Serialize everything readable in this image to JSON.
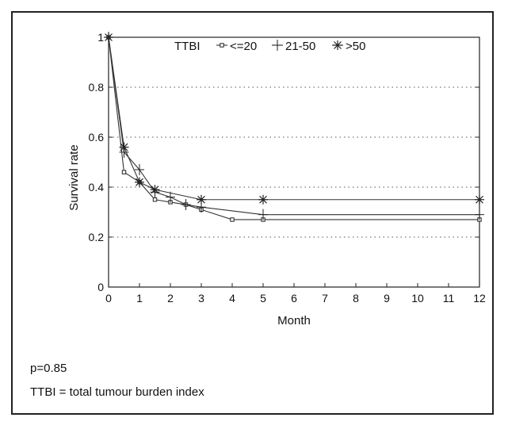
{
  "chart_data": {
    "type": "line",
    "xlabel": "Month",
    "ylabel": "Survival rate",
    "xlim": [
      0,
      12
    ],
    "ylim": [
      0,
      1
    ],
    "x_ticks": [
      "0",
      "1",
      "2",
      "3",
      "4",
      "5",
      "6",
      "7",
      "8",
      "9",
      "10",
      "11",
      "12"
    ],
    "y_ticks": [
      "0",
      "0.2",
      "0.4",
      "0.6",
      "0.8",
      "1"
    ],
    "grid": "horizontal dotted",
    "legend": {
      "title": "TTBI",
      "placement": "top"
    },
    "series": [
      {
        "name": "<=20",
        "marker": "square",
        "points": [
          [
            0,
            1.0
          ],
          [
            0.5,
            0.46
          ],
          [
            1,
            0.42
          ],
          [
            1.5,
            0.35
          ],
          [
            2,
            0.34
          ],
          [
            2.5,
            0.33
          ],
          [
            3,
            0.31
          ],
          [
            4,
            0.27
          ],
          [
            5,
            0.27
          ],
          [
            12,
            0.27
          ]
        ]
      },
      {
        "name": "21-50",
        "marker": "plus",
        "points": [
          [
            0,
            1.0
          ],
          [
            0.5,
            0.54
          ],
          [
            1,
            0.47
          ],
          [
            1.5,
            0.38
          ],
          [
            2,
            0.36
          ],
          [
            2.5,
            0.33
          ],
          [
            3,
            0.32
          ],
          [
            5,
            0.29
          ],
          [
            12,
            0.29
          ]
        ]
      },
      {
        "name": ">50",
        "marker": "star",
        "points": [
          [
            0,
            1.0
          ],
          [
            0.5,
            0.56
          ],
          [
            1,
            0.42
          ],
          [
            1.5,
            0.39
          ],
          [
            3,
            0.35
          ],
          [
            5,
            0.35
          ],
          [
            12,
            0.35
          ]
        ]
      }
    ]
  },
  "notes": {
    "pvalue": "p=0.85",
    "definition": "TTBI = total tumour burden index"
  }
}
